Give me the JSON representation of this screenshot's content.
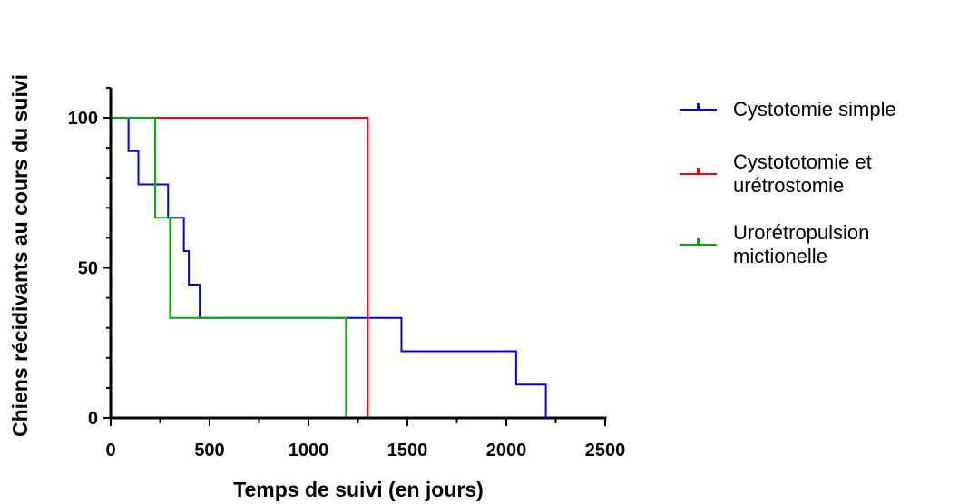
{
  "chart_data": {
    "type": "line",
    "step": true,
    "xlabel": "Temps de suivi (en jours)",
    "ylabel": "Chiens récidivants au cours du suivi",
    "xlim": [
      0,
      2500
    ],
    "ylim": [
      0,
      110
    ],
    "xticks": [
      0,
      500,
      1000,
      1500,
      2000,
      2500
    ],
    "yticks": [
      0,
      50,
      100
    ],
    "grid": false,
    "legend_position": "right",
    "series": [
      {
        "name": "Cystotomie simple",
        "color": "#0000ff",
        "x": [
          0,
          90,
          140,
          290,
          370,
          395,
          450,
          1470,
          2050,
          2200
        ],
        "y": [
          100,
          88.9,
          77.8,
          66.7,
          55.6,
          44.4,
          33.3,
          22.2,
          11.1,
          0
        ]
      },
      {
        "name": "Cystototomie et urétrostomie",
        "color": "#ff0000",
        "x": [
          0,
          1300
        ],
        "y": [
          100,
          0
        ]
      },
      {
        "name": "Urorétropulsion mictionelle",
        "color": "#00b000",
        "x": [
          0,
          225,
          300,
          1190
        ],
        "y": [
          100,
          66.7,
          33.3,
          0
        ]
      }
    ]
  }
}
